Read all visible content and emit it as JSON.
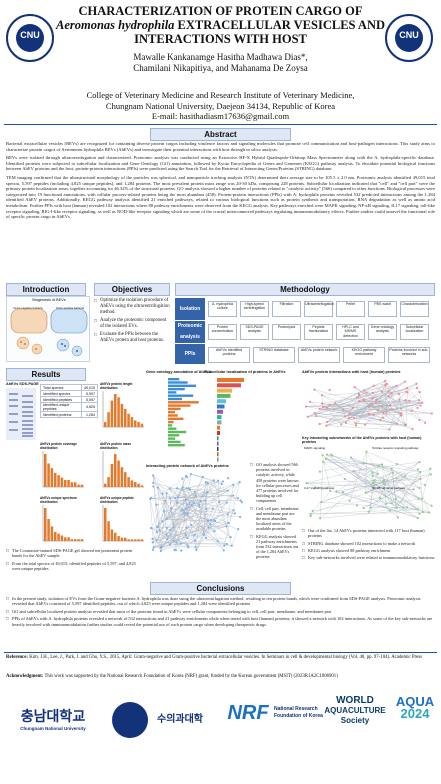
{
  "header": {
    "title_line1": "CHARACTERIZATION OF PROTEIN CARGO OF",
    "title_species": "Aeromonas hydrophila",
    "title_line2_rest": " EXTRACELLULAR VESICLES AND",
    "title_line3": "INTERACTIONS WITH HOST",
    "authors_line1": "Mawalle Kankanamge Hasitha Madhawa Dias*,",
    "authors_line2": "Chamilani Nikapitiya, and Mahanama De Zoysa",
    "affil_line1": "College of Veterinary Medicine and Research Institute of Veterinary Medicine,",
    "affil_line2": "Chungnam National University, Daejeon 34134, Republic of Korea",
    "affil_line3": "E-mail: hasithadiasm17636@gmail.com",
    "left_logo_text": "CNU",
    "right_logo_text": "CNU"
  },
  "abstract": {
    "heading": "Abstract",
    "p1": "Bacterial extracellular vesicles (BEVs) are recognized for containing diverse protein cargos including virulence factors and signaling molecules that promote cell communication and host-pathogen interactions. This study aims to characterize protein cargos of Aeromonas hydrophila BEVs (AhEVs) and investigate their potential interactions with host through in silico analysis.",
    "p2": "BEVs were isolated through ultracentrifugation and characterized. Proteomic analysis was conducted using an Extractive HF-X Hybrid Quadrupole-Orbitrap Mass Spectrometer along with the A. hydrophila-specific database. Identified proteins were subjected to subcellular localization and Gene Ontology (GO) annotation, followed by Kyoto Encyclopedia of Genes and Genomes (KEGG) pathway analysis. To elucidate potential biological functions between AhEV proteins and the host, protein-protein interactions (PPIs) were predicted using the Search Tool for the Retrieval of Interacting Genes/Proteins (STRING) database.",
    "p3": "TEM imaging confirmed that the ultrastructural morphology of the particles was spherical, and nanoparticle tracking analysis (NTA) determined their average size to be 105.5 ± 2.0 nm. Proteomic analysis identified 49,015 total spectra, 5,597 peptides (including 4,825 unique peptides), and 1,284 proteins. The most prevalent protein mass range was 20-30 kDa, comprising 228 proteins. Subcellular localization indicated that \"cell\" and \"cell part\" were the primary protein localization areas, together accounting for 46.32% of the structural proteins. GO analysis showed a higher number of proteins related to \"catalytic activity\" (566) compared to other functions. Biological processes were categorized into 19 functional annotations, with cellular process-related proteins being the most abundant (458). Protein-protein interactions (PPIs) with A. hydrophila proteins revealed 532 predicted interactions among the 1,284 identified AhEV proteins. Additionally, KEGG pathway analysis identified 21 enriched pathways, related to various biological functions such as protein synthesis and transportation, RNA degradation as well as amino acid metabolism. Further PPIs with host (human) revealed 102 interactions where 88 pathway enrichments were observed from the KEGG analysis. Key pathways enriched were MAPK signaling, NF-κB signaling, IL17 signaling, toll-like receptor signaling, RIG-I-like receptor signaling, as well as NOD-like receptor signaling which are some of the crucial interconnected pathways regulating immunomodulatory effects. Further studies could unravel the functional role of specific protein cargo in AhEVs."
  },
  "introduction": {
    "heading": "Introduction",
    "figure_caption": "Biogenesis of BEVs",
    "labels": [
      "Gram-negative bacteria",
      "Gram-positive bacteria",
      "Outer membrane vesicle",
      "Cytoplasmic membrane vesicle"
    ]
  },
  "objectives": {
    "heading": "Objectives",
    "items": [
      "Optimize the isolation procedure of AhEVs using the ultracentrifugation method.",
      "Analyze the proteomic component of the isolated EVs.",
      "Evaluate the PPIs between the AhEVs protein and host proteins."
    ]
  },
  "methodology": {
    "heading": "Methodology",
    "rows": [
      {
        "label": "Isolation",
        "steps": [
          "A. hydrophila culture",
          "High-speed centrifugation",
          "Filtration",
          "Ultracentrifugation",
          "Pellet",
          "PBS wash",
          "Characterization"
        ]
      },
      {
        "label": "Proteomic analysis",
        "steps": [
          "Protein concentration",
          "SDS-PAGE analysis",
          "Proteolysis",
          "Peptide fractionation",
          "HPLC and MS/MS detection",
          "Gene ontology analysis",
          "Subcellular localization"
        ]
      },
      {
        "label": "PPIs",
        "steps": [
          "AhEVs identified proteins",
          "STRING database",
          "AhEVs protein network",
          "KEGG pathway enrichment",
          "Proteins involved in sub-networks"
        ]
      }
    ]
  },
  "results": {
    "heading": "Results",
    "sds_label": "AhEVs SDS-PAGE",
    "table_title": "Summary",
    "table": [
      [
        "Total spectra",
        "49,015"
      ],
      [
        "Identified spectra",
        "5,597"
      ],
      [
        "Identified peptides",
        "5,597"
      ],
      [
        "Identified unique peptides",
        "4,825"
      ],
      [
        "Identified proteins",
        "1,284"
      ]
    ],
    "chart_titles": [
      "AhEVs protein length distribution",
      "AhEVs protein coverage distribution",
      "AhEVs protein mass distribution",
      "AhEVs unique spectrum distribution",
      "AhEVs unique peptide distribution"
    ],
    "go_title": "Gene ontology annotation of AhEVs",
    "subcell_title": "Subcellular localization of proteins in AhEVs",
    "ppi_bact_title": "Interacting protein network of AhEVs proteins",
    "ppi_host_title": "AhEVs protein interactions with host (human) proteins",
    "kegg_title": "Key interacting subnetworks of the AhEVs proteins with host (human) proteins",
    "bullets_left": [
      "The Coomassie-stained SDS-PAGE gel showed ten prominent protein bands for the AhEV sample.",
      "From the total spectra of 49,015; identified peptides of 5,597, and 4,825 were unique peptides"
    ],
    "bullets_mid": [
      "GO analysis showed 566 proteins involved in catalytic activity, while 458 proteins were known for cellular processes and 477 proteins involved for building up cell components",
      "Cell, cell part, membrane and membrane part are the most abundant localized areas of the available proteins",
      "KEGG analysis showed 21 pathway enrichments from 532 interactions out of the 1,284 AhEVs proteins"
    ],
    "bullets_right": [
      "Out of the list, 14 AhEVs proteins interacted with 117 host (human) proteins",
      "STRING database showed 102 interactions to make a network",
      "KEGG analysis showed 88 pathway enrichment",
      "Key sub-networks involved were related to immunomodulatory functions"
    ],
    "subnet_labels": [
      "MAPK signaling",
      "Toll-like receptor signaling pathway",
      "IL17 signaling pathway",
      "NF-κB signaling pathway"
    ]
  },
  "conclusions": {
    "heading": "Conclusions",
    "items": [
      "In the present study, isolation of EVs from the Gram-negative bacteria A. hydrophila was done using the ultracentrifugation method, resulting in ten protein bands, which were confirmed from SDS-PAGE analysis. Proteomic analysis revealed that AhEVs consisted of 5,597 identified peptides, out of which 4,825 were unique peptides and 1,284 were identified proteins",
      "GO and subcellular localized protein analysis revealed that most of the proteins found in AhEVs were cellular components belonging to cell, cell part, membrane, and membrane part",
      "PPIs of AhEVs with A. hydrophila proteins revealed a network of 532 interactions and 21 pathway enrichments while when tested with host (human) proteins, it showed a network with 102 interactions. As some of the key sub-networks are heavily involved with immunomodulation further studies could reveal the potential use of such protein cargo when developing therapeutic drugs."
    ]
  },
  "reference": {
    "label": "Reference:",
    "text": "Kim, J.H., Lee, J., Park, J. and Gho, Y.S., 2015, April. Gram-negative and Gram-positive bacterial extracellular vesicles. In Seminars in cell & developmental biology (Vol. 40, pp. 97-104). Academic Press"
  },
  "acknowledgment": {
    "label": "Acknowledgment:",
    "text": "This work was supported by the National Research Foundation of Korea (NRF) grant, funded by the Korean government (MSIT) (2023R1A2C1006901)"
  },
  "footer_logos": {
    "cnu_kr": "충남대학교",
    "cnu_en": "Chungnam National University",
    "vet_kr": "수의과대학",
    "nrf": "NRF",
    "nrf_sub1": "National Research",
    "nrf_sub2": "Foundation of Korea",
    "was1": "WORLD",
    "was2": "AQUACULTURE",
    "was3": "Society",
    "aqua": "AQUA",
    "aqua_year": "2024"
  },
  "colors": {
    "primary": "#1f4e9b",
    "accent": "#3563a8",
    "bar": "#e4792b"
  }
}
